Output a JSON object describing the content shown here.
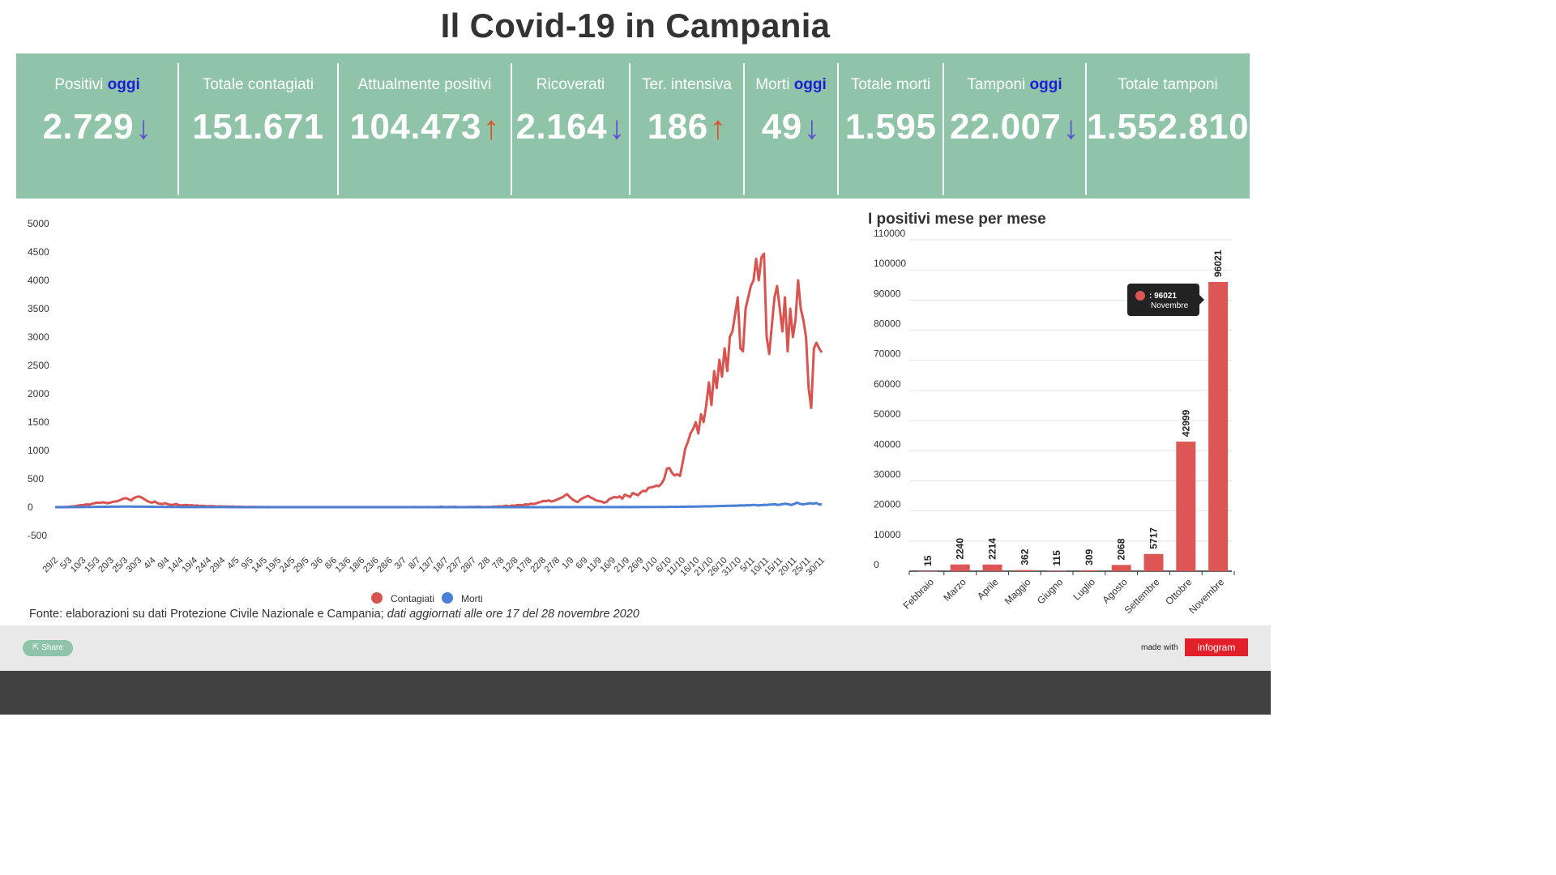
{
  "title": "Il Covid-19 in Campania",
  "stats": [
    {
      "label": "Positivi",
      "highlight": "oggi",
      "value": "2.729",
      "arrow": "↓"
    },
    {
      "label": "Totale contagiati",
      "highlight": "",
      "value": "151.671",
      "arrow": ""
    },
    {
      "label": "Attualmente positivi",
      "highlight": "",
      "value": "104.473",
      "arrow": "↑"
    },
    {
      "label": "Ricoverati",
      "highlight": "",
      "value": "2.164",
      "arrow": "↓"
    },
    {
      "label": "Ter. intensiva",
      "highlight": "",
      "value": "186",
      "arrow": "↑"
    },
    {
      "label": "Morti",
      "highlight": "oggi",
      "value": "49",
      "arrow": "↓"
    },
    {
      "label": "Totale morti",
      "highlight": "",
      "value": "1.595",
      "arrow": ""
    },
    {
      "label": "Tamponi",
      "highlight": "oggi",
      "value": "22.007",
      "arrow": "↓"
    },
    {
      "label": "Totale tamponi",
      "highlight": "",
      "value": "1.552.810",
      "arrow": ""
    }
  ],
  "source": {
    "prefix": "Fonte: elaborazioni su dati Protezione Civile Nazionale e Campania;",
    "italic": "dati aggiornati alle ore 17 del 28 novembre 2020"
  },
  "footer": {
    "share": "Share",
    "made_with": "made with",
    "brand": "infogram"
  },
  "colors": {
    "banner": "#8fc4a8",
    "contagiati": "#d9534f",
    "morti": "#4a7fd6",
    "bar": "#dc5656",
    "highlight_text": "#1d1dd8",
    "arrow_down": "#5d4fd6",
    "arrow_up": "#e0502a"
  },
  "chart_data": [
    {
      "type": "line",
      "title": "",
      "xlabel": "",
      "ylabel": "",
      "ylim": [
        -500,
        5000
      ],
      "yticks": [
        5000,
        4500,
        4000,
        3500,
        3000,
        2500,
        2000,
        1500,
        1000,
        500,
        0,
        -500
      ],
      "xticks": [
        "29/2",
        "5/3",
        "10/3",
        "15/3",
        "20/3",
        "25/3",
        "30/3",
        "4/4",
        "9/4",
        "14/4",
        "19/4",
        "24/4",
        "29/4",
        "4/5",
        "9/5",
        "14/5",
        "19/5",
        "24/5",
        "29/5",
        "3/6",
        "8/6",
        "13/6",
        "18/6",
        "23/6",
        "28/6",
        "3/7",
        "8/7",
        "13/7",
        "18/7",
        "23/7",
        "28/7",
        "2/8",
        "7/8",
        "12/8",
        "17/8",
        "22/8",
        "27/8",
        "1/9",
        "6/9",
        "11/9",
        "16/9",
        "21/9",
        "26/9",
        "1/10",
        "6/10",
        "11/10",
        "16/10",
        "21/10",
        "26/10",
        "31/10",
        "5/11",
        "10/11",
        "15/11",
        "20/11",
        "25/11",
        "30/11"
      ],
      "legend": "bottom",
      "grid": false,
      "series": [
        {
          "name": "Contagiati",
          "key": "contagiati",
          "x_start_index": 0,
          "step_per_tick": 5,
          "values": [
            0,
            1,
            2,
            3,
            4,
            5,
            10,
            15,
            20,
            30,
            35,
            40,
            50,
            45,
            60,
            70,
            80,
            75,
            85,
            80,
            70,
            80,
            95,
            100,
            110,
            130,
            150,
            160,
            140,
            120,
            160,
            180,
            190,
            170,
            140,
            110,
            90,
            80,
            100,
            70,
            60,
            55,
            70,
            50,
            40,
            45,
            55,
            40,
            30,
            35,
            40,
            30,
            35,
            25,
            30,
            20,
            25,
            20,
            15,
            20,
            18,
            15,
            12,
            15,
            10,
            12,
            8,
            10,
            12,
            6,
            8,
            5,
            6,
            4,
            5,
            6,
            4,
            3,
            4,
            3,
            2,
            3,
            2,
            2,
            2,
            1,
            2,
            1,
            1,
            2,
            1,
            1,
            1,
            1,
            1,
            2,
            1,
            1,
            1,
            1,
            1,
            1,
            1,
            2,
            1,
            1,
            1,
            1,
            1,
            1,
            2,
            1,
            1,
            1,
            1,
            1,
            1,
            1,
            1,
            1,
            2,
            1,
            1,
            1,
            1,
            1,
            1,
            2,
            1,
            1,
            2,
            1,
            1,
            1,
            2,
            1,
            1,
            3,
            2,
            1,
            1,
            2,
            3,
            1,
            2,
            1,
            1,
            10,
            3,
            2,
            5,
            2,
            8,
            3,
            2,
            1,
            2,
            3,
            5,
            3,
            4,
            8,
            5,
            3,
            2,
            6,
            4,
            10,
            8,
            15,
            12,
            20,
            25,
            15,
            30,
            25,
            35,
            40,
            30,
            50,
            45,
            60,
            55,
            65,
            80,
            95,
            110,
            105,
            120,
            100,
            110,
            130,
            150,
            170,
            200,
            230,
            180,
            140,
            110,
            90,
            130,
            160,
            180,
            200,
            170,
            150,
            120,
            110,
            100,
            80,
            90,
            140,
            160,
            180,
            170,
            190,
            150,
            220,
            200,
            180,
            250,
            230,
            210,
            260,
            290,
            280,
            340,
            350,
            360,
            380,
            370,
            420,
            500,
            680,
            690,
            600,
            560,
            580,
            550,
            780,
            1030,
            1150,
            1300,
            1380,
            1500,
            1300,
            1640,
            1500,
            1800,
            2200,
            1800,
            2400,
            2100,
            2600,
            2300,
            2800,
            2400,
            3000,
            3100,
            3400,
            3700,
            2800,
            2750,
            3500,
            3700,
            3900,
            4000,
            4380,
            4000,
            4400,
            4470,
            3000,
            2700,
            3200,
            3700,
            3900,
            3500,
            3100,
            3700,
            2750,
            3500,
            3000,
            3300,
            4000,
            3500,
            3300,
            3000,
            2100,
            1750,
            2800,
            2900,
            2800,
            2729
          ]
        },
        {
          "name": "Morti",
          "key": "morti",
          "x_start_index": 0,
          "step_per_tick": 5,
          "values": [
            0,
            0,
            0,
            0,
            0,
            0,
            1,
            1,
            1,
            2,
            2,
            3,
            3,
            4,
            5,
            6,
            7,
            6,
            8,
            7,
            9,
            8,
            10,
            9,
            11,
            10,
            12,
            10,
            11,
            9,
            10,
            9,
            8,
            8,
            7,
            7,
            6,
            6,
            5,
            5,
            4,
            4,
            4,
            3,
            3,
            3,
            2,
            2,
            2,
            2,
            2,
            1,
            1,
            1,
            1,
            1,
            1,
            1,
            1,
            1,
            1,
            1,
            1,
            0,
            0,
            0,
            0,
            0,
            0,
            0,
            0,
            0,
            0,
            0,
            0,
            0,
            0,
            0,
            0,
            0,
            0,
            0,
            0,
            0,
            0,
            0,
            0,
            0,
            0,
            0,
            0,
            0,
            0,
            0,
            0,
            0,
            0,
            0,
            0,
            0,
            0,
            0,
            0,
            0,
            0,
            0,
            0,
            0,
            0,
            0,
            0,
            0,
            0,
            0,
            0,
            0,
            0,
            0,
            0,
            0,
            0,
            0,
            0,
            0,
            0,
            0,
            0,
            0,
            0,
            0,
            0,
            0,
            0,
            0,
            0,
            0,
            0,
            0,
            0,
            0,
            0,
            0,
            0,
            0,
            0,
            0,
            0,
            0,
            0,
            0,
            0,
            0,
            0,
            0,
            0,
            0,
            0,
            0,
            0,
            0,
            0,
            0,
            0,
            0,
            0,
            0,
            0,
            0,
            0,
            0,
            0,
            0,
            0,
            0,
            0,
            0,
            0,
            0,
            1,
            1,
            0,
            1,
            0,
            1,
            1,
            1,
            0,
            1,
            1,
            1,
            1,
            1,
            2,
            1,
            1,
            1,
            2,
            1,
            2,
            1,
            2,
            2,
            1,
            2,
            2,
            2,
            3,
            2,
            2,
            3,
            2,
            3,
            2,
            3,
            3,
            4,
            3,
            3,
            4,
            4,
            5,
            4,
            5,
            5,
            6,
            7,
            6,
            8,
            7,
            9,
            10,
            9,
            11,
            12,
            13,
            14,
            15,
            16,
            14,
            17,
            18,
            20,
            22,
            21,
            25,
            24,
            27,
            26,
            30,
            32,
            28,
            35,
            33,
            40,
            38,
            30,
            35,
            42,
            40,
            45,
            48,
            50,
            42,
            45,
            55,
            60,
            50,
            40,
            55,
            80,
            60,
            50,
            55,
            65,
            70,
            60,
            75,
            50,
            49
          ]
        }
      ]
    },
    {
      "type": "bar",
      "title": "I positivi mese per mese",
      "xlabel": "",
      "ylabel": "",
      "ylim": [
        0,
        110000
      ],
      "yticks": [
        110000,
        100000,
        90000,
        80000,
        70000,
        60000,
        50000,
        40000,
        30000,
        20000,
        10000,
        0
      ],
      "grid": true,
      "categories": [
        "Febbraio",
        "Marzo",
        "Aprile",
        "Maggio",
        "Giugno",
        "Luglio",
        "Agosto",
        "Settembre",
        "Ottobre",
        "Novembre"
      ],
      "values": [
        15,
        2240,
        2214,
        362,
        115,
        309,
        2068,
        5717,
        42999,
        96021
      ],
      "tooltip": {
        "value": ": 96021",
        "category": "Novembre"
      }
    }
  ]
}
